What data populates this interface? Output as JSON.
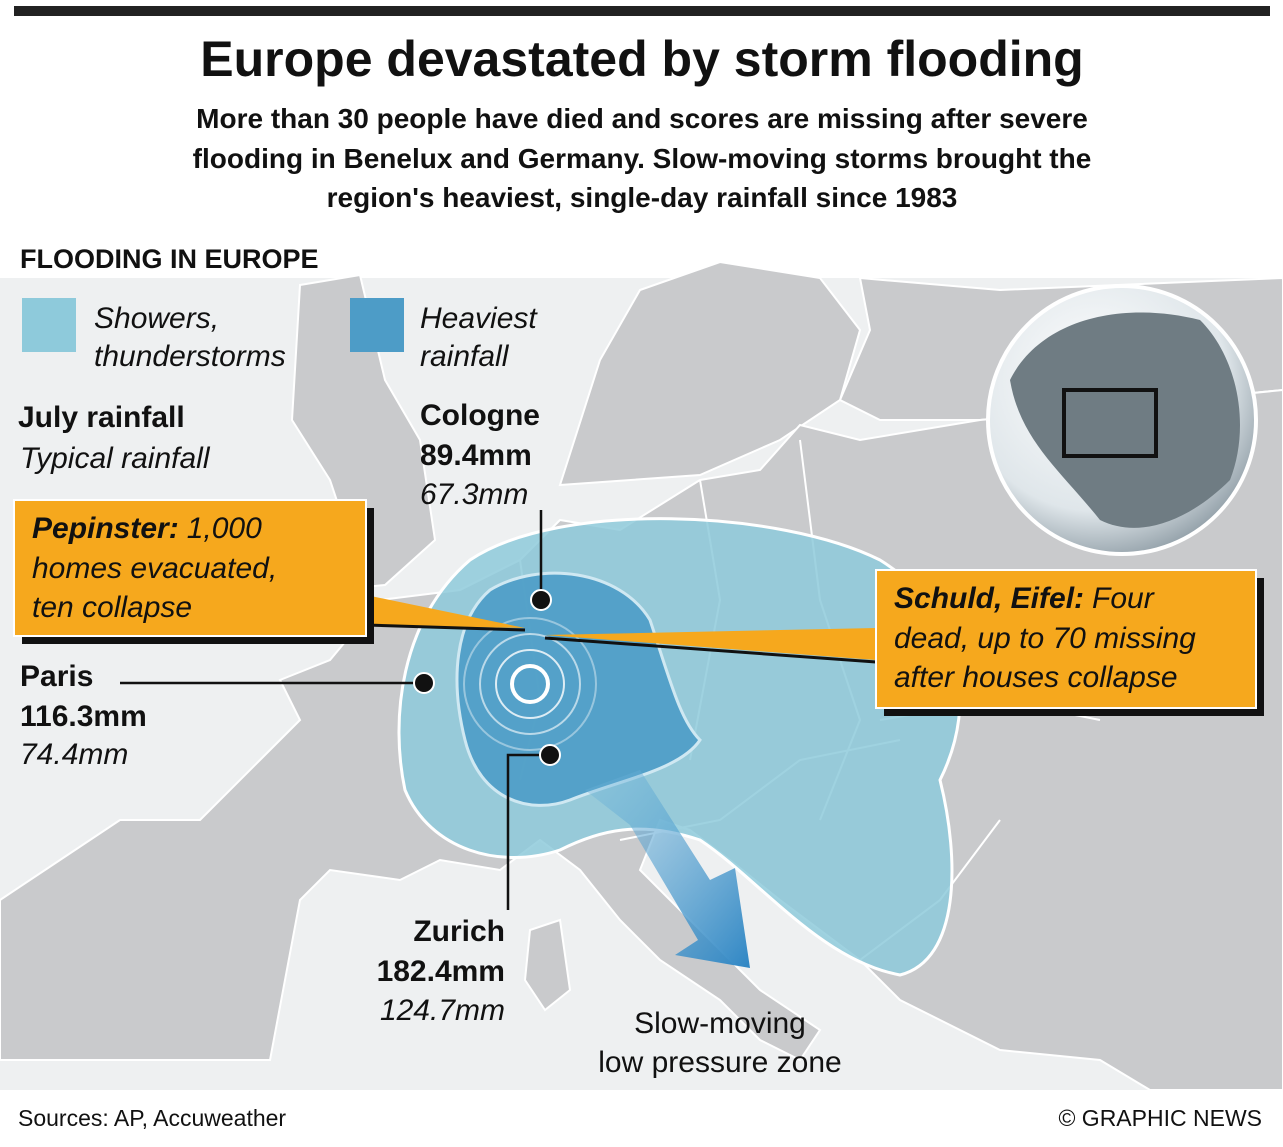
{
  "header": {
    "title": "Europe devastated by storm flooding",
    "subtitle_lines": [
      "More than 30 people have died and scores are missing after severe",
      "flooding in Benelux and Germany. Slow-moving storms brought the",
      "region's heaviest, single-day rainfall since 1983"
    ]
  },
  "section_title": "FLOODING IN EUROPE",
  "legend": [
    {
      "label_lines": [
        "Showers,",
        "thunderstorms"
      ]
    },
    {
      "label_lines": [
        "Heaviest",
        "rainfall"
      ]
    }
  ],
  "key": {
    "july": "July rainfall",
    "typical": "Typical rainfall"
  },
  "cities": [
    {
      "name": "Cologne",
      "july": "89.4mm",
      "typical": "67.3mm"
    },
    {
      "name": "Paris",
      "july": "116.3mm",
      "typical": "74.4mm"
    },
    {
      "name": "Zurich",
      "july": "182.4mm",
      "typical": "124.7mm"
    }
  ],
  "callouts": [
    {
      "place": "Pepinster:",
      "lines": [
        "1,000",
        "homes evacuated,",
        "ten collapse"
      ]
    },
    {
      "place": "Schuld, Eifel:",
      "lines": [
        "Four",
        "dead, up to 70 missing",
        "after houses collapse"
      ]
    }
  ],
  "arrow_label_lines": [
    "Slow-moving",
    "low pressure zone"
  ],
  "footer": {
    "source": "Sources: AP, Accuweather",
    "credit": "© GRAPHIC NEWS"
  }
}
